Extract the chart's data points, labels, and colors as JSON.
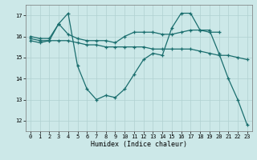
{
  "xlabel": "Humidex (Indice chaleur)",
  "bg_color": "#cce8e8",
  "grid_color": "#b0d0d0",
  "line_color": "#1a6e6e",
  "xlim": [
    -0.5,
    23.5
  ],
  "ylim": [
    11.5,
    17.5
  ],
  "xticks": [
    0,
    1,
    2,
    3,
    4,
    5,
    6,
    7,
    8,
    9,
    10,
    11,
    12,
    13,
    14,
    15,
    16,
    17,
    18,
    19,
    20,
    21,
    22,
    23
  ],
  "yticks": [
    12,
    13,
    14,
    15,
    16,
    17
  ],
  "line1_x": [
    0,
    1,
    2,
    3,
    4,
    5,
    6,
    7,
    8,
    9,
    10,
    11,
    12,
    13,
    14,
    15,
    16,
    17,
    18,
    19,
    20,
    21,
    22,
    23
  ],
  "line1_y": [
    15.8,
    15.7,
    15.8,
    16.6,
    17.1,
    14.6,
    13.5,
    13.0,
    13.2,
    13.1,
    13.5,
    14.2,
    14.9,
    15.2,
    15.1,
    16.4,
    17.1,
    17.1,
    16.3,
    16.3,
    15.2,
    14.0,
    13.0,
    11.8
  ],
  "line2_x": [
    0,
    1,
    2,
    3,
    4,
    5,
    6,
    7,
    8,
    9,
    10,
    11,
    12,
    13,
    14,
    15,
    16,
    17,
    18,
    19,
    20,
    21,
    22,
    23
  ],
  "line2_y": [
    15.9,
    15.8,
    15.8,
    15.8,
    15.8,
    15.7,
    15.6,
    15.6,
    15.5,
    15.5,
    15.5,
    15.5,
    15.5,
    15.4,
    15.4,
    15.4,
    15.4,
    15.4,
    15.3,
    15.2,
    15.1,
    15.1,
    15.0,
    14.9
  ],
  "line3_x": [
    0,
    1,
    2,
    3,
    4,
    5,
    6,
    7,
    8,
    9,
    10,
    11,
    12,
    13,
    14,
    15,
    16,
    17,
    18,
    19,
    20
  ],
  "line3_y": [
    16.0,
    15.9,
    15.9,
    16.6,
    16.1,
    15.9,
    15.8,
    15.8,
    15.8,
    15.7,
    16.0,
    16.2,
    16.2,
    16.2,
    16.1,
    16.1,
    16.2,
    16.3,
    16.3,
    16.2,
    16.2
  ]
}
